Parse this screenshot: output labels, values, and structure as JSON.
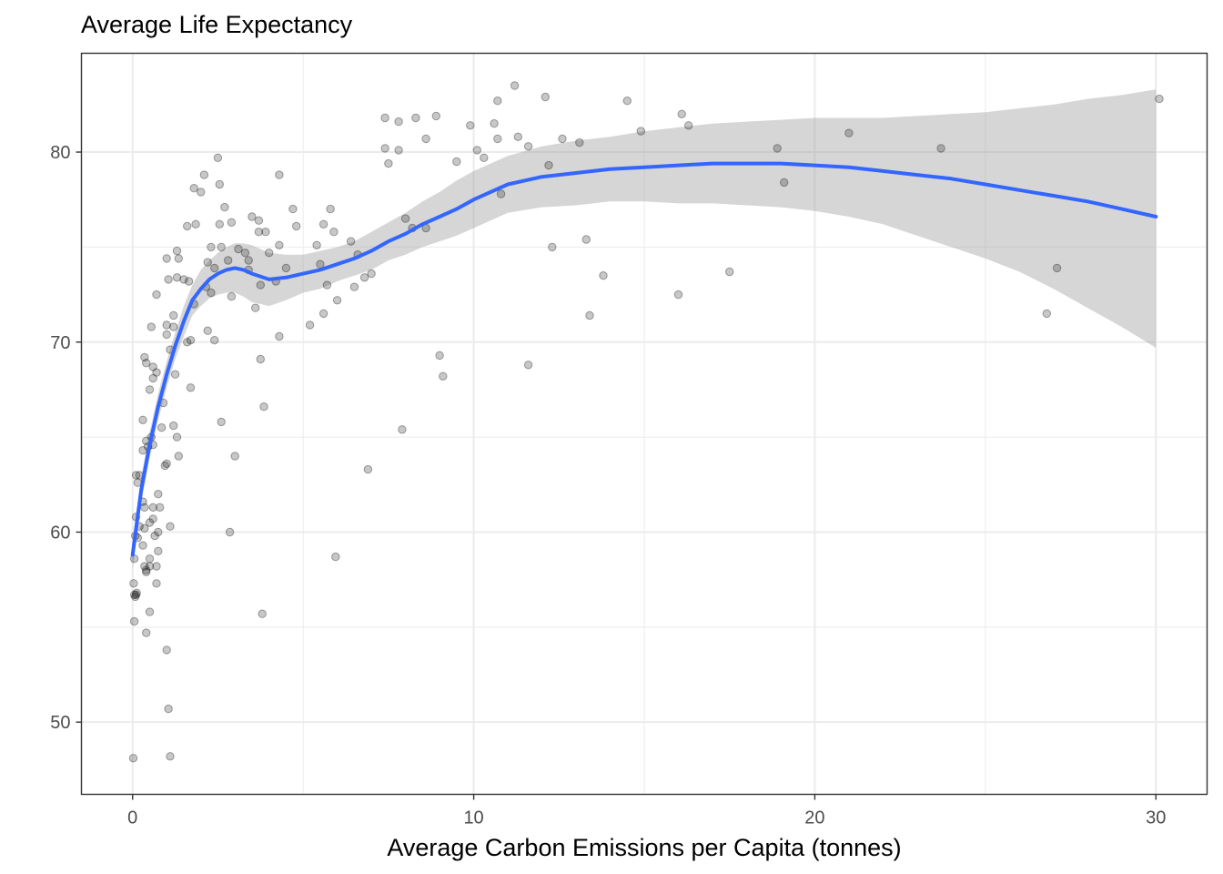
{
  "chart_data": {
    "type": "scatter",
    "title": "Average Life Expectancy",
    "xlabel": "Average Carbon Emissions per Capita (tonnes)",
    "ylabel": "",
    "xlim": [
      -1.5,
      31.5
    ],
    "ylim": [
      46.2,
      85.2
    ],
    "x_ticks": [
      0,
      10,
      20,
      30
    ],
    "y_ticks": [
      50,
      60,
      70,
      80
    ],
    "x_tick_labels": [
      "0",
      "10",
      "20",
      "30"
    ],
    "y_tick_labels": [
      "50",
      "60",
      "70",
      "80"
    ],
    "grid": true,
    "legend": "none",
    "colors": {
      "points": "#000000",
      "smooth_line": "#3366ff",
      "confidence_band": "#999999",
      "grid": "#ebebeb",
      "panel_border": "#333333"
    },
    "series": [
      {
        "kind": "points",
        "points": [
          [
            0.02,
            48.1
          ],
          [
            0.05,
            55.3
          ],
          [
            0.03,
            57.3
          ],
          [
            0.05,
            56.7
          ],
          [
            0.08,
            56.6
          ],
          [
            0.1,
            56.7
          ],
          [
            0.12,
            56.8
          ],
          [
            0.05,
            58.6
          ],
          [
            0.08,
            59.8
          ],
          [
            0.15,
            59.7
          ],
          [
            0.1,
            60.8
          ],
          [
            0.2,
            60.3
          ],
          [
            0.15,
            62.6
          ],
          [
            0.1,
            63.0
          ],
          [
            0.2,
            63.0
          ],
          [
            0.3,
            65.9
          ],
          [
            0.3,
            64.3
          ],
          [
            0.3,
            61.6
          ],
          [
            0.35,
            61.3
          ],
          [
            0.35,
            60.2
          ],
          [
            0.3,
            59.3
          ],
          [
            0.35,
            58.2
          ],
          [
            0.4,
            57.9
          ],
          [
            0.4,
            58.0
          ],
          [
            0.5,
            58.2
          ],
          [
            0.5,
            58.6
          ],
          [
            0.35,
            69.2
          ],
          [
            0.4,
            68.9
          ],
          [
            0.4,
            64.8
          ],
          [
            0.45,
            64.5
          ],
          [
            0.5,
            67.5
          ],
          [
            0.55,
            70.8
          ],
          [
            0.55,
            65.0
          ],
          [
            0.6,
            64.6
          ],
          [
            0.6,
            61.3
          ],
          [
            0.5,
            60.5
          ],
          [
            0.6,
            60.7
          ],
          [
            0.65,
            59.8
          ],
          [
            0.7,
            57.3
          ],
          [
            0.7,
            58.2
          ],
          [
            0.5,
            55.8
          ],
          [
            0.4,
            54.7
          ],
          [
            0.6,
            68.7
          ],
          [
            0.6,
            68.1
          ],
          [
            0.7,
            72.5
          ],
          [
            0.7,
            68.4
          ],
          [
            0.75,
            62.0
          ],
          [
            0.8,
            61.3
          ],
          [
            0.75,
            60.0
          ],
          [
            0.75,
            59.0
          ],
          [
            0.9,
            66.8
          ],
          [
            0.95,
            63.5
          ],
          [
            1.0,
            63.6
          ],
          [
            0.85,
            65.5
          ],
          [
            1.0,
            70.9
          ],
          [
            1.0,
            70.4
          ],
          [
            1.0,
            74.4
          ],
          [
            1.05,
            73.3
          ],
          [
            1.1,
            69.6
          ],
          [
            1.2,
            70.8
          ],
          [
            1.2,
            71.4
          ],
          [
            1.25,
            68.3
          ],
          [
            1.3,
            73.4
          ],
          [
            1.3,
            74.8
          ],
          [
            1.35,
            74.4
          ],
          [
            1.2,
            65.6
          ],
          [
            1.3,
            65.0
          ],
          [
            1.35,
            64.0
          ],
          [
            1.0,
            53.8
          ],
          [
            1.05,
            50.7
          ],
          [
            1.1,
            48.2
          ],
          [
            1.1,
            60.3
          ],
          [
            1.6,
            76.1
          ],
          [
            1.6,
            70.0
          ],
          [
            1.5,
            73.3
          ],
          [
            1.65,
            73.2
          ],
          [
            1.7,
            70.1
          ],
          [
            1.8,
            72.0
          ],
          [
            1.8,
            78.1
          ],
          [
            1.85,
            76.2
          ],
          [
            1.7,
            67.6
          ],
          [
            2.0,
            77.9
          ],
          [
            2.1,
            78.8
          ],
          [
            2.15,
            72.9
          ],
          [
            2.2,
            74.2
          ],
          [
            2.2,
            70.6
          ],
          [
            2.3,
            75.0
          ],
          [
            2.4,
            73.9
          ],
          [
            2.3,
            72.6
          ],
          [
            2.4,
            70.1
          ],
          [
            2.5,
            79.7
          ],
          [
            2.55,
            78.3
          ],
          [
            2.55,
            76.2
          ],
          [
            2.6,
            75.0
          ],
          [
            2.7,
            77.1
          ],
          [
            2.6,
            65.8
          ],
          [
            2.8,
            74.3
          ],
          [
            2.9,
            76.3
          ],
          [
            2.9,
            72.4
          ],
          [
            2.85,
            60.0
          ],
          [
            3.0,
            64.0
          ],
          [
            3.1,
            74.9
          ],
          [
            3.3,
            74.7
          ],
          [
            3.4,
            74.3
          ],
          [
            3.4,
            73.8
          ],
          [
            3.5,
            76.6
          ],
          [
            3.6,
            71.8
          ],
          [
            3.7,
            76.4
          ],
          [
            3.7,
            75.8
          ],
          [
            3.75,
            73.0
          ],
          [
            3.75,
            69.1
          ],
          [
            3.85,
            66.6
          ],
          [
            3.8,
            55.7
          ],
          [
            3.9,
            75.8
          ],
          [
            4.0,
            74.7
          ],
          [
            4.2,
            73.2
          ],
          [
            4.3,
            78.8
          ],
          [
            4.3,
            75.1
          ],
          [
            4.3,
            70.3
          ],
          [
            4.5,
            73.9
          ],
          [
            4.7,
            77.0
          ],
          [
            4.8,
            76.1
          ],
          [
            5.2,
            70.9
          ],
          [
            5.4,
            75.1
          ],
          [
            5.5,
            74.1
          ],
          [
            5.6,
            76.2
          ],
          [
            5.6,
            71.5
          ],
          [
            5.7,
            73.0
          ],
          [
            5.8,
            77.0
          ],
          [
            5.9,
            75.8
          ],
          [
            6.0,
            72.2
          ],
          [
            5.95,
            58.7
          ],
          [
            6.4,
            75.3
          ],
          [
            6.5,
            72.9
          ],
          [
            6.6,
            74.6
          ],
          [
            6.8,
            73.4
          ],
          [
            7.0,
            73.6
          ],
          [
            6.9,
            63.3
          ],
          [
            7.4,
            81.8
          ],
          [
            7.4,
            80.2
          ],
          [
            7.5,
            79.4
          ],
          [
            7.8,
            81.6
          ],
          [
            7.8,
            80.1
          ],
          [
            7.9,
            65.4
          ],
          [
            8.0,
            76.5
          ],
          [
            8.3,
            81.8
          ],
          [
            8.2,
            76.0
          ],
          [
            8.6,
            80.7
          ],
          [
            8.6,
            76.0
          ],
          [
            8.9,
            81.9
          ],
          [
            9.0,
            69.3
          ],
          [
            9.1,
            68.2
          ],
          [
            9.5,
            79.5
          ],
          [
            9.9,
            81.4
          ],
          [
            10.1,
            80.1
          ],
          [
            10.3,
            79.7
          ],
          [
            10.6,
            81.5
          ],
          [
            10.7,
            80.7
          ],
          [
            10.7,
            82.7
          ],
          [
            10.8,
            77.8
          ],
          [
            11.2,
            83.5
          ],
          [
            11.3,
            80.8
          ],
          [
            11.6,
            80.3
          ],
          [
            11.6,
            68.8
          ],
          [
            12.1,
            82.9
          ],
          [
            12.2,
            79.3
          ],
          [
            12.3,
            75.0
          ],
          [
            12.6,
            80.7
          ],
          [
            13.1,
            80.5
          ],
          [
            13.3,
            75.4
          ],
          [
            13.4,
            71.4
          ],
          [
            13.8,
            73.5
          ],
          [
            14.5,
            82.7
          ],
          [
            14.9,
            81.1
          ],
          [
            16.0,
            72.5
          ],
          [
            16.1,
            82.0
          ],
          [
            16.3,
            81.4
          ],
          [
            17.5,
            73.7
          ],
          [
            18.9,
            80.2
          ],
          [
            19.1,
            78.4
          ],
          [
            21.0,
            81.0
          ],
          [
            23.7,
            80.2
          ],
          [
            26.8,
            71.5
          ],
          [
            27.1,
            73.9
          ],
          [
            30.1,
            82.8
          ]
        ]
      },
      {
        "kind": "smooth",
        "x": [
          0.0,
          0.25,
          0.5,
          0.75,
          1.0,
          1.25,
          1.5,
          1.75,
          2.0,
          2.25,
          2.5,
          2.75,
          3.0,
          3.25,
          3.5,
          4.0,
          4.5,
          5.0,
          5.5,
          6.0,
          6.5,
          7.0,
          7.5,
          8.0,
          8.5,
          9.0,
          9.5,
          10.0,
          11.0,
          12.0,
          13.0,
          14.0,
          15.0,
          16.0,
          17.0,
          18.0,
          19.0,
          20.0,
          21.0,
          22.0,
          23.0,
          24.0,
          25.0,
          26.0,
          27.0,
          28.0,
          29.0,
          30.0
        ],
        "y": [
          58.8,
          62.2,
          64.6,
          66.6,
          68.3,
          69.8,
          71.1,
          72.2,
          72.8,
          73.3,
          73.6,
          73.8,
          73.9,
          73.8,
          73.6,
          73.3,
          73.4,
          73.6,
          73.8,
          74.1,
          74.4,
          74.8,
          75.3,
          75.7,
          76.2,
          76.6,
          77.0,
          77.5,
          78.3,
          78.7,
          78.9,
          79.1,
          79.2,
          79.3,
          79.4,
          79.4,
          79.4,
          79.3,
          79.2,
          79.0,
          78.8,
          78.6,
          78.3,
          78.0,
          77.7,
          77.4,
          77.0,
          76.6
        ],
        "upper": [
          59.6,
          62.9,
          65.3,
          67.3,
          69.0,
          70.5,
          71.9,
          73.0,
          73.8,
          74.3,
          74.7,
          75.0,
          75.2,
          75.2,
          75.1,
          74.7,
          74.6,
          74.6,
          74.8,
          75.0,
          75.3,
          75.8,
          76.3,
          76.8,
          77.4,
          77.9,
          78.5,
          79.0,
          79.8,
          80.3,
          80.6,
          80.8,
          81.1,
          81.3,
          81.5,
          81.6,
          81.7,
          81.8,
          81.8,
          81.8,
          81.9,
          82.0,
          82.1,
          82.3,
          82.5,
          82.8,
          83.0,
          83.3
        ],
        "lower": [
          58.0,
          61.5,
          63.9,
          65.9,
          67.6,
          69.1,
          70.3,
          71.4,
          71.9,
          72.3,
          72.5,
          72.6,
          72.6,
          72.4,
          72.1,
          71.9,
          72.2,
          72.6,
          72.8,
          73.2,
          73.5,
          73.8,
          74.3,
          74.6,
          75.0,
          75.3,
          75.6,
          76.0,
          76.8,
          77.1,
          77.2,
          77.4,
          77.4,
          77.3,
          77.3,
          77.2,
          77.1,
          76.9,
          76.6,
          76.2,
          75.6,
          75.0,
          74.4,
          73.7,
          72.8,
          71.8,
          70.8,
          69.7
        ]
      }
    ]
  }
}
